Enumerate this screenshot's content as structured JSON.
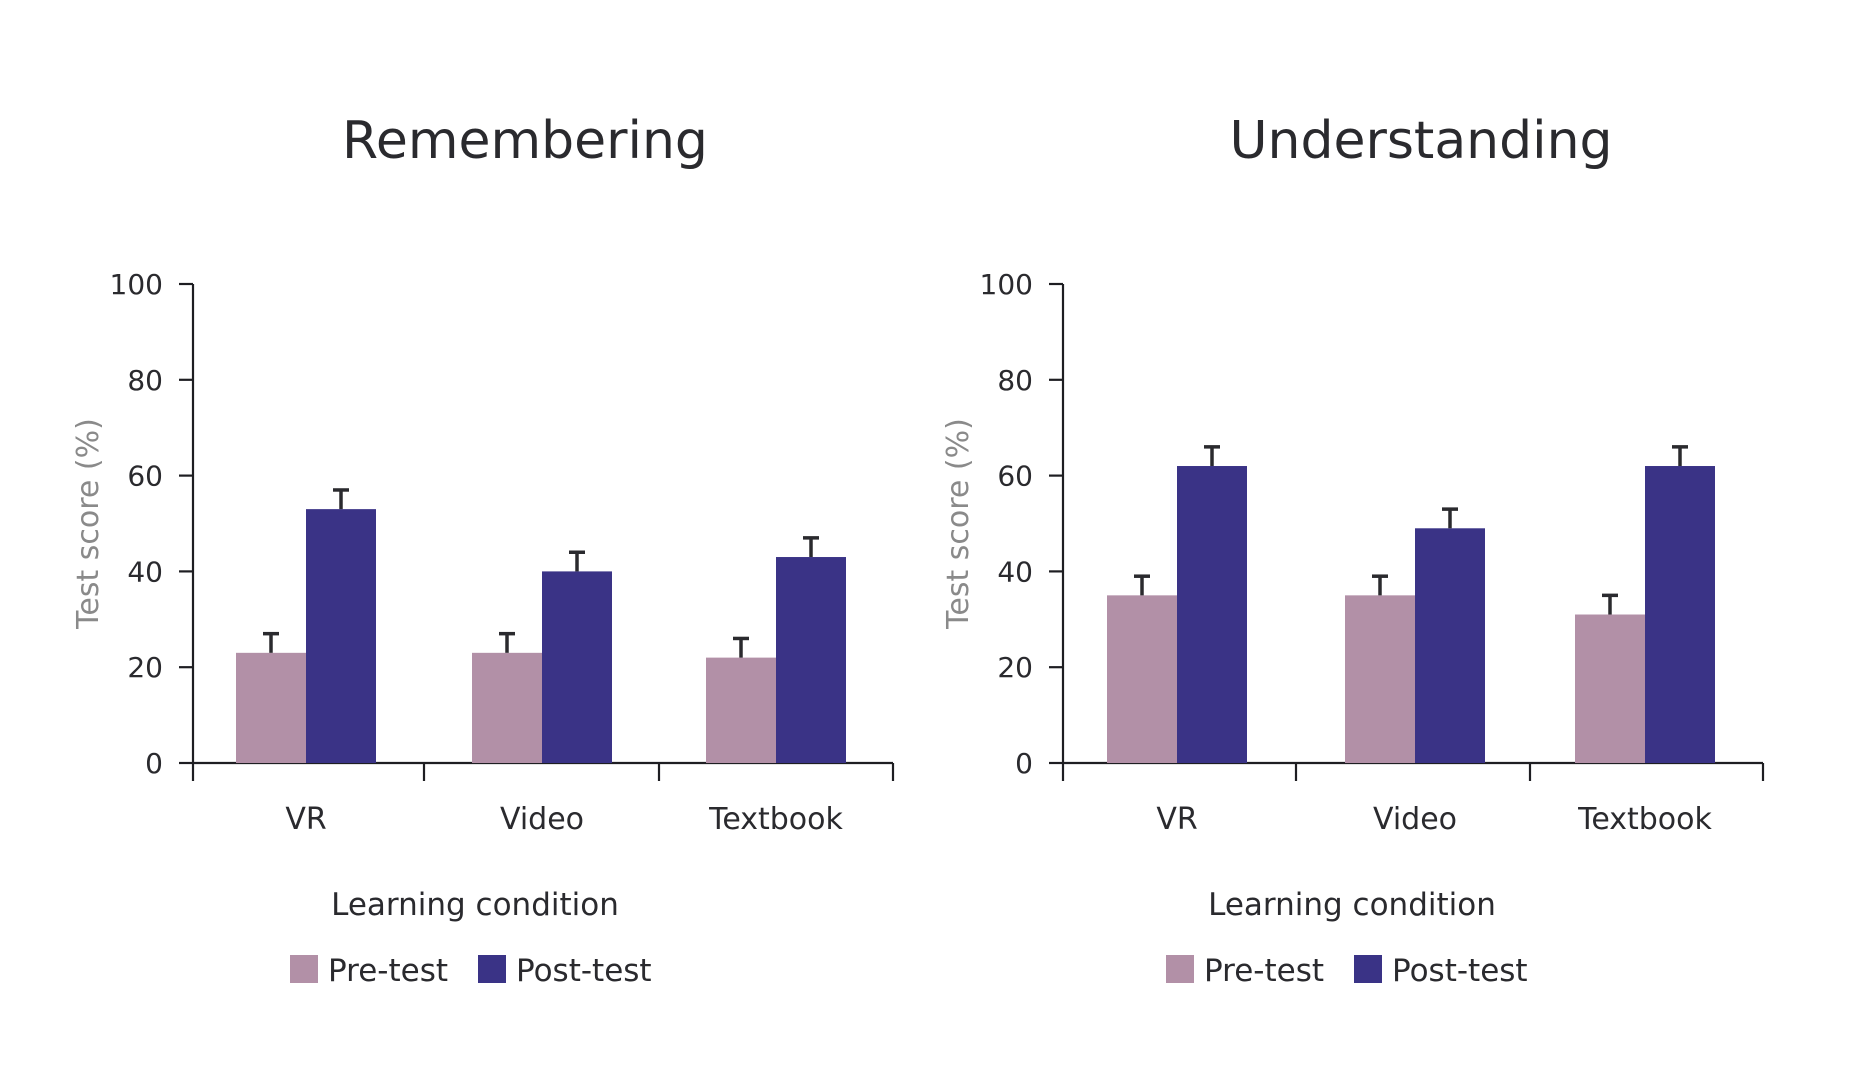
{
  "chart_data": [
    {
      "type": "bar",
      "title": "Remembering",
      "xlabel": "Learning condition",
      "ylabel": "Test score (%)",
      "ylim": [
        0,
        100
      ],
      "yticks": [
        "0",
        "20",
        "40",
        "60",
        "80",
        "100"
      ],
      "categories": [
        "VR",
        "Video",
        "Textbook"
      ],
      "series": [
        {
          "name": "Pre-test",
          "color": "#b290a7",
          "values": [
            23,
            23,
            22
          ],
          "errors": [
            4,
            4,
            4
          ]
        },
        {
          "name": "Post-test",
          "color": "#3a3386",
          "values": [
            53,
            40,
            43
          ],
          "errors": [
            4,
            4,
            4
          ]
        }
      ],
      "grid": false,
      "legend": "bottom"
    },
    {
      "type": "bar",
      "title": "Understanding",
      "xlabel": "Learning condition",
      "ylabel": "Test score (%)",
      "ylim": [
        0,
        100
      ],
      "yticks": [
        "0",
        "20",
        "40",
        "60",
        "80",
        "100"
      ],
      "categories": [
        "VR",
        "Video",
        "Textbook"
      ],
      "series": [
        {
          "name": "Pre-test",
          "color": "#b290a7",
          "values": [
            35,
            35,
            31
          ],
          "errors": [
            4,
            4,
            4
          ]
        },
        {
          "name": "Post-test",
          "color": "#3a3386",
          "values": [
            62,
            49,
            62
          ],
          "errors": [
            4,
            4,
            4
          ]
        }
      ],
      "grid": false,
      "legend": "bottom"
    }
  ]
}
